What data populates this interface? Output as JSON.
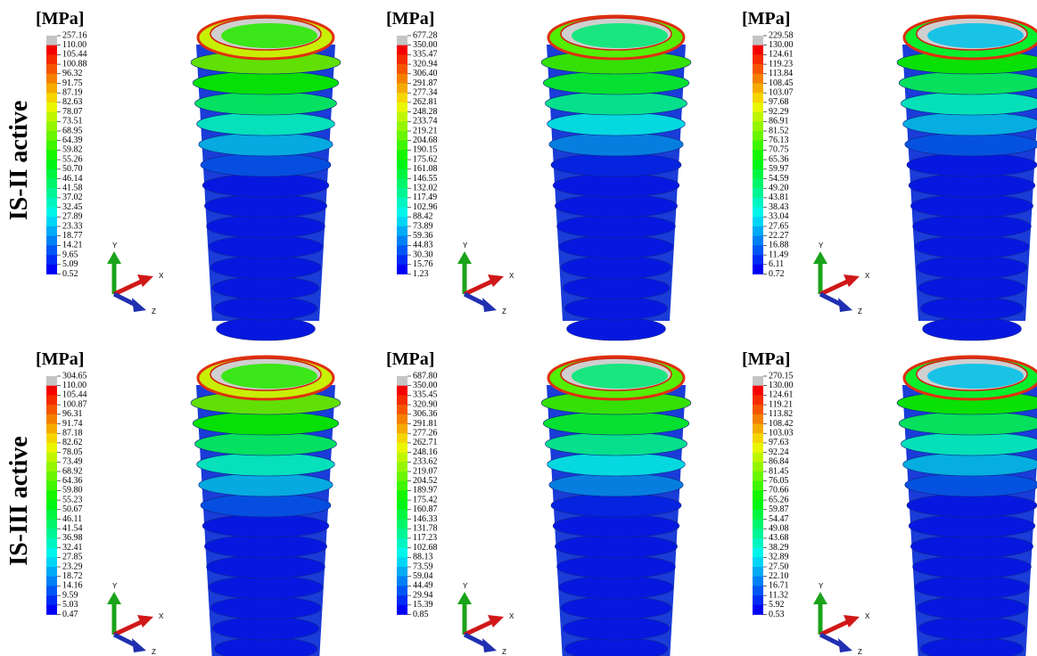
{
  "rows": [
    {
      "label": "IS-II active",
      "panels": [
        {
          "unit": "[MPa]",
          "axes": {
            "y": "Y",
            "x": "X",
            "z": "Z"
          },
          "legend": [
            "257.16",
            "110.00",
            "105.44",
            "100.88",
            "96.32",
            "91.75",
            "87.19",
            "82.63",
            "78.07",
            "73.51",
            "68.95",
            "64.39",
            "59.82",
            "55.26",
            "50.70",
            "46.14",
            "41.58",
            "37.02",
            "32.45",
            "27.89",
            "23.33",
            "18.77",
            "14.21",
            "9.65",
            "5.09",
            "0.52"
          ]
        },
        {
          "unit": "[MPa]",
          "axes": {
            "y": "Y",
            "x": "X",
            "z": "Z"
          },
          "legend": [
            "677.28",
            "350.00",
            "335.47",
            "320.94",
            "306.40",
            "291.87",
            "277.34",
            "262.81",
            "248.28",
            "233.74",
            "219.21",
            "204.68",
            "190.15",
            "175.62",
            "161.08",
            "146.55",
            "132.02",
            "117.49",
            "102.96",
            "88.42",
            "73.89",
            "59.36",
            "44.83",
            "30.30",
            "15.76",
            "1.23"
          ]
        },
        {
          "unit": "[MPa]",
          "axes": {
            "y": "Y",
            "x": "X",
            "z": "Z"
          },
          "legend": [
            "229.58",
            "130.00",
            "124.61",
            "119.23",
            "113.84",
            "108.45",
            "103.07",
            "97.68",
            "92.29",
            "86.91",
            "81.52",
            "76.13",
            "70.75",
            "65.36",
            "59.97",
            "54.59",
            "49.20",
            "43.81",
            "38.43",
            "33.04",
            "27.65",
            "22.27",
            "16.88",
            "11.49",
            "6.11",
            "0.72"
          ]
        }
      ]
    },
    {
      "label": "IS-III active",
      "panels": [
        {
          "unit": "[MPa]",
          "axes": {
            "y": "Y",
            "x": "X",
            "z": "Z"
          },
          "legend": [
            "304.65",
            "110.00",
            "105.44",
            "100.87",
            "96.31",
            "91.74",
            "87.18",
            "82.62",
            "78.05",
            "73.49",
            "68.92",
            "64.36",
            "59.80",
            "55.23",
            "50.67",
            "46.11",
            "41.54",
            "36.98",
            "32.41",
            "27.85",
            "23.29",
            "18.72",
            "14.16",
            "9.59",
            "5.03",
            "0.47"
          ]
        },
        {
          "unit": "[MPa]",
          "axes": {
            "y": "Y",
            "x": "X",
            "z": "Z"
          },
          "legend": [
            "687.80",
            "350.00",
            "335.45",
            "320.90",
            "306.36",
            "291.81",
            "277.26",
            "262.71",
            "248.16",
            "233.62",
            "219.07",
            "204.52",
            "189.97",
            "175.42",
            "160.87",
            "146.33",
            "131.78",
            "117.23",
            "102.68",
            "88.13",
            "73.59",
            "59.04",
            "44.49",
            "29.94",
            "15.39",
            "0.85"
          ]
        },
        {
          "unit": "[MPa]",
          "axes": {
            "y": "Y",
            "x": "X",
            "z": "Z"
          },
          "legend": [
            "270.15",
            "130.00",
            "124.61",
            "119.21",
            "113.82",
            "108.42",
            "103.03",
            "97.63",
            "92.24",
            "86.84",
            "81.45",
            "76.05",
            "70.66",
            "65.26",
            "59.87",
            "54.47",
            "49.08",
            "43.68",
            "38.29",
            "32.89",
            "27.50",
            "22.10",
            "16.71",
            "11.32",
            "5.92",
            "0.53"
          ]
        }
      ]
    }
  ]
}
